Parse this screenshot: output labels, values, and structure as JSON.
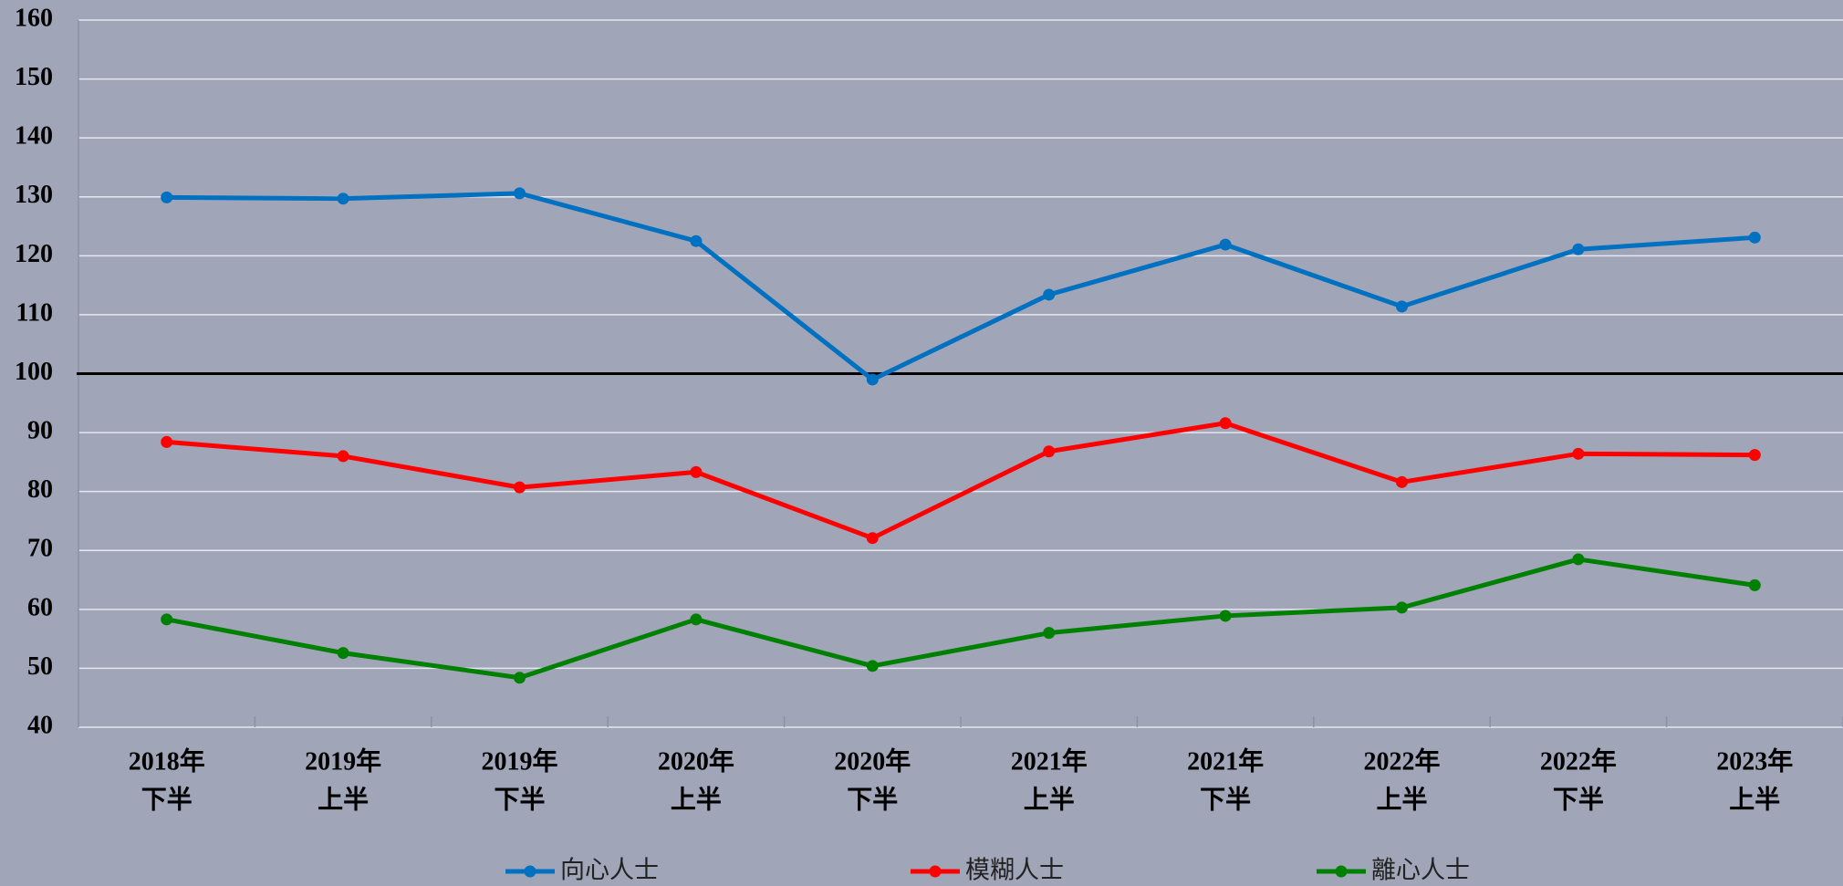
{
  "chart_data": {
    "type": "line",
    "categories": [
      [
        "2018年",
        "下半"
      ],
      [
        "2019年",
        "上半"
      ],
      [
        "2019年",
        "下半"
      ],
      [
        "2020年",
        "上半"
      ],
      [
        "2020年",
        "下半"
      ],
      [
        "2021年",
        "上半"
      ],
      [
        "2021年",
        "下半"
      ],
      [
        "2022年",
        "上半"
      ],
      [
        "2022年",
        "下半"
      ],
      [
        "2023年",
        "上半"
      ]
    ],
    "series": [
      {
        "name": "向心人士",
        "color": "#0070c0",
        "values": [
          129.9,
          129.7,
          130.6,
          122.5,
          99.0,
          113.4,
          121.9,
          111.4,
          121.1,
          123.1
        ]
      },
      {
        "name": "模糊人士",
        "color": "#ff0000",
        "values": [
          88.4,
          86.0,
          80.7,
          83.3,
          72.1,
          86.8,
          91.6,
          81.6,
          86.4,
          86.2
        ]
      },
      {
        "name": "離心人士",
        "color": "#008000",
        "values": [
          58.3,
          52.6,
          48.4,
          58.3,
          50.4,
          56.0,
          58.9,
          60.3,
          68.5,
          64.1
        ]
      }
    ],
    "ylim": [
      40,
      160
    ],
    "yticks": [
      40,
      50,
      60,
      70,
      80,
      90,
      100,
      110,
      120,
      130,
      140,
      150,
      160
    ],
    "reference_line": 100,
    "grid": true,
    "legend": "bottom"
  }
}
